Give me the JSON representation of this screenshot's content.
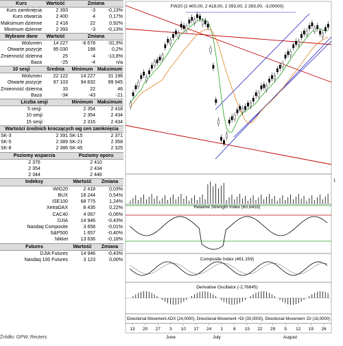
{
  "kurs": {
    "headers": [
      "Kurs",
      "Wartość",
      "Zmiana"
    ],
    "rows": [
      [
        "Kurs zamknięcia",
        "2 393",
        "-3",
        "-0,13%"
      ],
      [
        "Kurs otwarcia",
        "2 400",
        "4",
        "0,17%"
      ],
      [
        "Maksimum dzienne",
        "2 418",
        "22",
        "0,92%"
      ],
      [
        "Minimum dzienne",
        "2 393",
        "-3",
        "-0,13%"
      ]
    ]
  },
  "wybrane": {
    "headers": [
      "Wybrane dane",
      "Wartość",
      "Zmiana"
    ],
    "rows": [
      [
        "Wolumen",
        "14 227",
        "-6 678",
        "-31,9%"
      ],
      [
        "Otwarte pozycje",
        "95 030",
        "198",
        "0,2%"
      ],
      [
        "Zmienność dzienna",
        "25",
        "-4",
        "-13,8%"
      ],
      [
        "Baza",
        "-25",
        "-4",
        "n/a"
      ]
    ]
  },
  "sesje10": {
    "headers": [
      "10 sesji",
      "Średnia",
      "Minimum",
      "Maksimum"
    ],
    "rows": [
      [
        "Wolumen",
        "22 122",
        "14 227",
        "31 196"
      ],
      [
        "Otwarte pozycje",
        "97 103",
        "94 832",
        "99 945"
      ],
      [
        "Zmienność dzienna",
        "33",
        "22",
        "46"
      ],
      [
        "Baza",
        "-34",
        "-43",
        "-21"
      ]
    ]
  },
  "liczba": {
    "headers": [
      "Liczba sesji",
      "Minimum",
      "Maksimum"
    ],
    "rows": [
      [
        "5 sesji",
        "2 354",
        "2 418"
      ],
      [
        "10 sesji",
        "2 354",
        "2 434"
      ],
      [
        "15 sesji",
        "2 316",
        "2 434"
      ]
    ]
  },
  "srednie": {
    "title": "Wartości średnich kroczących wg cen zamknięcia",
    "rows": [
      [
        "SK-3",
        "2 391",
        "SK-15",
        "2 371"
      ],
      [
        "SK-5",
        "2 389",
        "SK-21",
        "2 358"
      ],
      [
        "SK-8",
        "2 386",
        "SK-45",
        "2 325"
      ]
    ]
  },
  "poziomy": {
    "headers": [
      "Poziomy wsparcia",
      "Poziomy oporu"
    ],
    "rows": [
      [
        "2 376",
        "2 410"
      ],
      [
        "2 354",
        "2 434"
      ],
      [
        "2 344",
        "2 446"
      ]
    ]
  },
  "indeksy": {
    "headers": [
      "Indeksy",
      "Wartość",
      "Zmiana"
    ],
    "rows": [
      [
        "WIG20",
        "2 418",
        "0,03%"
      ],
      [
        "BUX",
        "18 244",
        "0,54%"
      ],
      [
        "ISE100",
        "68 775",
        "1,24%"
      ],
      [
        "XetraDAX",
        "8 435",
        "0,22%"
      ],
      [
        "CAC40",
        "4 067",
        "-0,06%"
      ],
      [
        "DJIA",
        "14 946",
        "-0,43%"
      ],
      [
        "Nasdaq Composite",
        "3 658",
        "-0,01%"
      ],
      [
        "S&P500",
        "1 657",
        "-0,40%"
      ],
      [
        "Nikkei",
        "13 636",
        "-0,18%"
      ]
    ]
  },
  "futures": {
    "headers": [
      "Futures",
      "Wartość",
      "Zmiana"
    ],
    "rows": [
      [
        "DJIA Futures",
        "14 946",
        "-0,43%"
      ],
      [
        "Nasdaq 100 Futures",
        "3 123",
        "0,00%"
      ]
    ]
  },
  "footer": "Źródło: GPW, Reuters",
  "chart": {
    "title": "FW20 (2 400,00, 2 418,00, 2 393,00, 2 393,00, -3,00000)",
    "rsi_label": "Relative Strength Index (60,6433)",
    "composite_label": "Composite Index (461,159)",
    "deriv_label": "Derivative Oscillator (-2,76645)",
    "dmi_label": "Directional Movement ADX (24,0000), Directional Movement +DI (30,0000), Directional Movement -DI (16,0000)",
    "xticks": [
      "13",
      "20",
      "27",
      "3",
      "10",
      "17",
      "24",
      "1",
      "8",
      "15",
      "22",
      "29",
      "5",
      "12",
      "19",
      "26"
    ],
    "months": [
      "June",
      "July",
      "August"
    ],
    "vol_tick": "1",
    "colors": {
      "candle": "#000000",
      "ma_fast": "#20a020",
      "ma_slow": "#e08020",
      "trend_red": "#c00000",
      "channel": "#2020c0",
      "rsi_h": "#c00000",
      "rsi_l": "#20a020",
      "panel_bg": "#ffffff"
    }
  }
}
